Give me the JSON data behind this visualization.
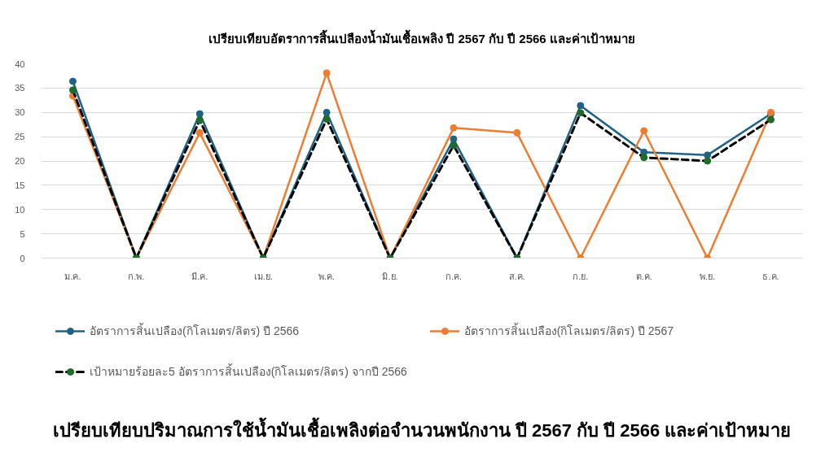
{
  "chart_data": {
    "type": "line",
    "title": "เปรียบเทียบอัตราการสิ้นเปลืองน้ำมันเชื้อเพลิง ปี 2567 กับ ปี 2566 และค่าเป้าหมาย",
    "categories": [
      "ม.ค.",
      "ก.พ.",
      "มี.ค.",
      "เม.ย.",
      "พ.ค.",
      "มิ.ย.",
      "ก.ค.",
      "ส.ค.",
      "ก.ย.",
      "ต.ค.",
      "พ.ย.",
      "ธ.ค."
    ],
    "series": [
      {
        "name": "อัตราการสิ้นเปลือง(กิโลเมตร/ลิตร) ปี 2566",
        "color": "#1f6283",
        "values": [
          36.4,
          0,
          29.7,
          0,
          30.0,
          0,
          24.5,
          0,
          31.4,
          21.8,
          21.2,
          29.7
        ]
      },
      {
        "name": "อัตราการสิ้นเปลือง(กิโลเมตร/ลิตร) ปี 2567",
        "color": "#ed7d31",
        "values": [
          33.4,
          0,
          25.8,
          0,
          38.1,
          0,
          26.8,
          25.8,
          0,
          26.2,
          0,
          30.0
        ]
      },
      {
        "name": "เป้าหมายร้อยละ5 อัตราการสิ้นเปลือง(กิโลเมตร/ลิตร) จากปี 2566",
        "color": "#000000",
        "line_style": "dashed",
        "colors": [
          "#1e6b2a",
          "#1e6b2a",
          "#1e6b2a",
          "#1e6b2a",
          "#1e6b2a",
          "#1e6b2a",
          "#1e6b2a",
          "#1e6b2a",
          "#1e6b2a",
          "#1e6b2a",
          "#1e6b2a",
          "#1e6b2a"
        ],
        "values": [
          34.6,
          0,
          28.4,
          0,
          28.6,
          0,
          23.2,
          0,
          29.9,
          20.7,
          20.0,
          28.5
        ]
      }
    ],
    "ylim": [
      0,
      40
    ],
    "yticks": [
      0,
      5,
      10,
      15,
      20,
      25,
      30,
      35,
      40
    ],
    "grid": "y",
    "legend": "bottom",
    "marker": "circle",
    "line_style": "solid",
    "annotations": [
      "เปรียบเทียบปริมาณการใช้น้ำมันเชื้อเพลิงต่อจำนวนพนักงาน ปี 2567 กับ ปี 2566 และค่าเป้าหมาย"
    ]
  }
}
